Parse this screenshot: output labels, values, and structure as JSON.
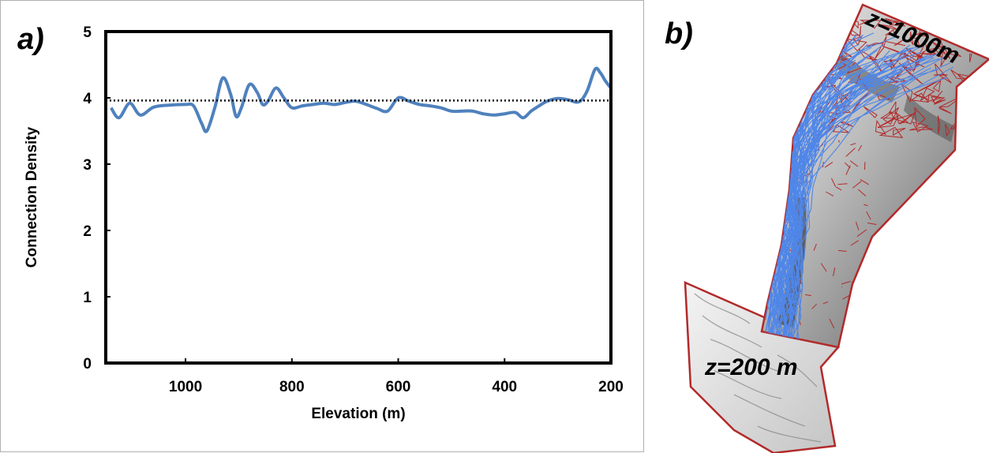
{
  "panels": {
    "a_label": "a)",
    "b_label": "b)"
  },
  "chart_data": {
    "type": "line",
    "xlabel": "Elevation (m)",
    "ylabel": "Connection Density",
    "xlim": [
      1150,
      200
    ],
    "ylim": [
      0,
      5
    ],
    "x_ticks": [
      1000,
      800,
      600,
      400,
      200
    ],
    "y_ticks": [
      0,
      1,
      2,
      3,
      4,
      5
    ],
    "grid": false,
    "legend": "none",
    "series": [
      {
        "color": "#4f81bd",
        "x": [
          1140,
          1125,
          1105,
          1085,
          1060,
          1030,
          1000,
          985,
          970,
          960,
          945,
          930,
          915,
          905,
          895,
          880,
          865,
          855,
          845,
          830,
          815,
          800,
          780,
          760,
          740,
          720,
          700,
          680,
          660,
          640,
          620,
          600,
          580,
          560,
          540,
          520,
          500,
          480,
          460,
          440,
          420,
          400,
          380,
          365,
          350,
          335,
          320,
          300,
          280,
          260,
          245,
          230,
          220,
          210,
          200
        ],
        "y": [
          3.85,
          3.7,
          3.92,
          3.74,
          3.86,
          3.89,
          3.9,
          3.88,
          3.62,
          3.5,
          3.85,
          4.3,
          4.05,
          3.72,
          3.85,
          4.2,
          4.08,
          3.9,
          3.95,
          4.15,
          4.0,
          3.85,
          3.88,
          3.9,
          3.92,
          3.9,
          3.93,
          3.95,
          3.9,
          3.84,
          3.8,
          4.0,
          3.95,
          3.9,
          3.88,
          3.85,
          3.8,
          3.8,
          3.8,
          3.76,
          3.74,
          3.76,
          3.78,
          3.7,
          3.8,
          3.88,
          3.95,
          3.99,
          3.97,
          3.94,
          4.1,
          4.43,
          4.38,
          4.25,
          4.15
        ]
      },
      {
        "line_style": "dotted",
        "color": "#000000",
        "x": [
          1150,
          200
        ],
        "y": [
          3.96,
          3.96
        ]
      }
    ]
  },
  "map": {
    "top_label": "z=1000m",
    "bottom_label": "z=200 m",
    "colors": {
      "boundary": "#b22a2a",
      "network": "#4f86e8",
      "relief_light": "#e8e8e8",
      "relief_dark": "#2a2a2a"
    }
  }
}
